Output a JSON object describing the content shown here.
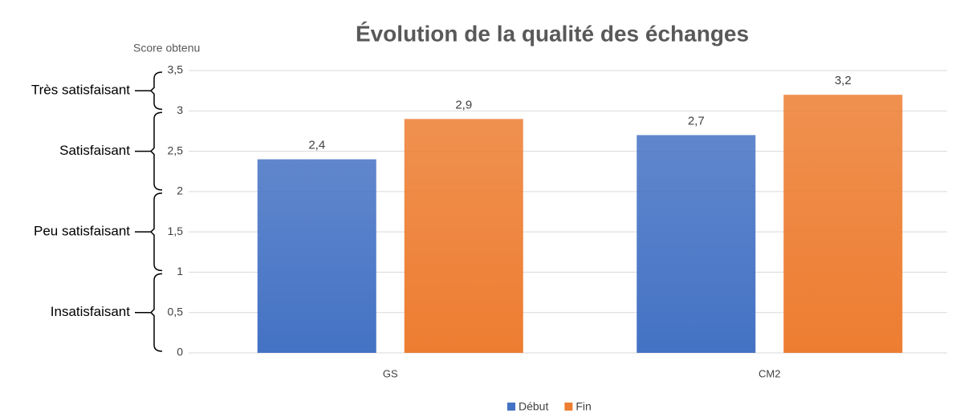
{
  "chart_data": {
    "type": "bar",
    "title": "Évolution de la qualité des échanges",
    "y_axis_label": "Score obtenu",
    "categories": [
      "GS",
      "CM2"
    ],
    "series": [
      {
        "name": "Début",
        "color": "#4472c4",
        "values": [
          2.4,
          2.7
        ],
        "value_labels": [
          "2,4",
          "2,7"
        ]
      },
      {
        "name": "Fin",
        "color": "#ed7d31",
        "values": [
          2.9,
          3.2
        ],
        "value_labels": [
          "2,9",
          "3,2"
        ]
      }
    ],
    "ylim": [
      0,
      3.5
    ],
    "yticks": [
      0,
      {
        "value": 0.5,
        "label": "0,5"
      },
      1,
      {
        "value": 1.5,
        "label": "1,5"
      },
      2,
      {
        "value": 2.5,
        "label": "2,5"
      },
      3,
      {
        "value": 3.5,
        "label": "3,5"
      }
    ],
    "grid": true,
    "legend": "bottom",
    "bands": [
      {
        "label": "Très satisfaisant",
        "from": 3,
        "to": 3.5
      },
      {
        "label": "Satisfaisant",
        "from": 2,
        "to": 3
      },
      {
        "label": "Peu satisfaisant",
        "from": 1,
        "to": 2
      },
      {
        "label": "Insatisfaisant",
        "from": 0,
        "to": 1
      }
    ]
  }
}
